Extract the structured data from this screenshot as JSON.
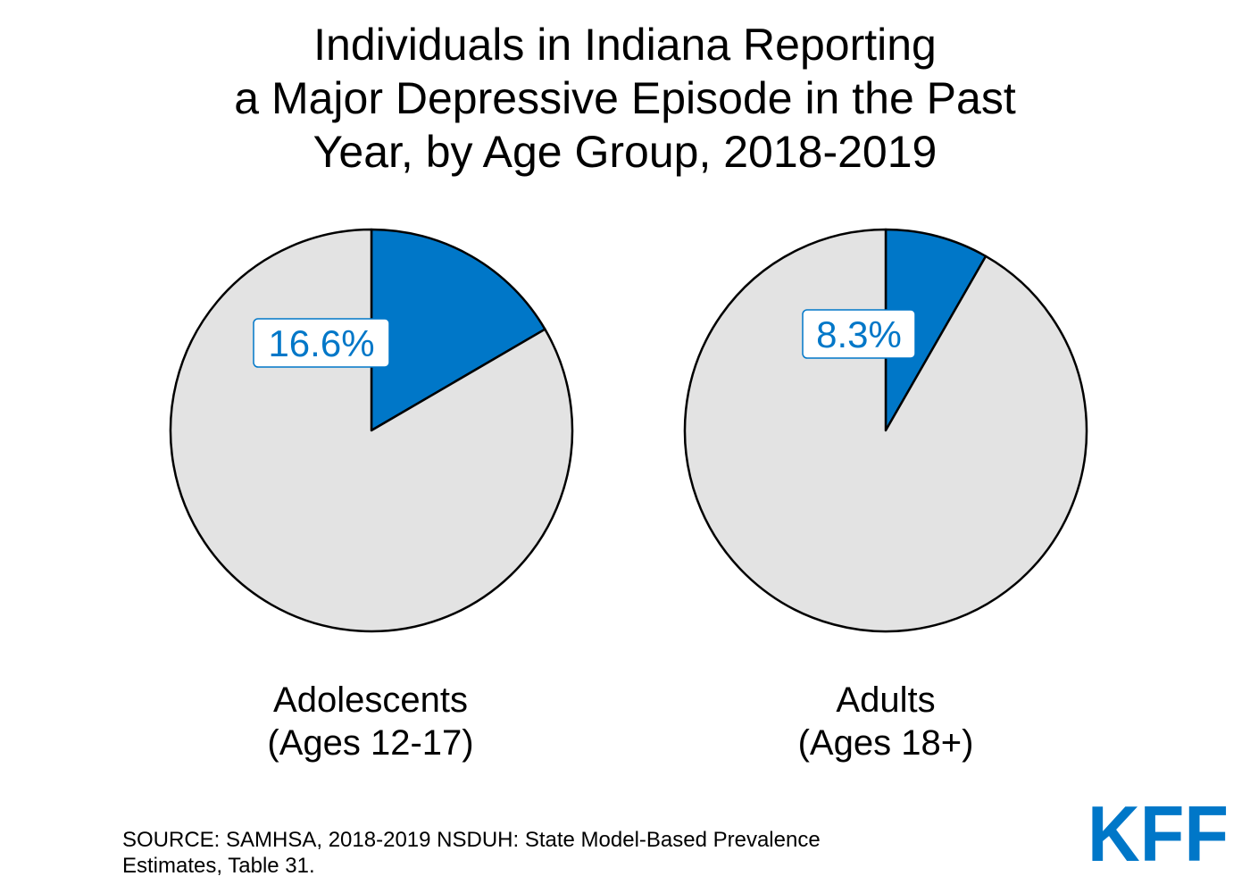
{
  "title": {
    "line1": "Individuals in Indiana Reporting",
    "line2": "a Major Depressive Episode in the Past",
    "line3": "Year, by Age Group, 2018-2019"
  },
  "colors": {
    "highlight": "#0077C8",
    "remainder": "#E3E3E3",
    "outline": "#000000"
  },
  "chart_data": [
    {
      "type": "pie",
      "label_line1": "Adolescents",
      "label_line2": "(Ages 12-17)",
      "slices": [
        {
          "value": 16.6,
          "data_label": "16.6%",
          "color": "#0077C8"
        },
        {
          "value": 83.4,
          "data_label": "",
          "color": "#E3E3E3"
        }
      ]
    },
    {
      "type": "pie",
      "label_line1": "Adults",
      "label_line2": "(Ages 18+)",
      "slices": [
        {
          "value": 8.3,
          "data_label": "8.3%",
          "color": "#0077C8"
        },
        {
          "value": 91.7,
          "data_label": "",
          "color": "#E3E3E3"
        }
      ]
    }
  ],
  "source": {
    "line1": "SOURCE: SAMHSA, 2018-2019 NSDUH: State Model-Based Prevalence",
    "line2": "Estimates, Table 31."
  },
  "logo": {
    "text": "KFF"
  }
}
